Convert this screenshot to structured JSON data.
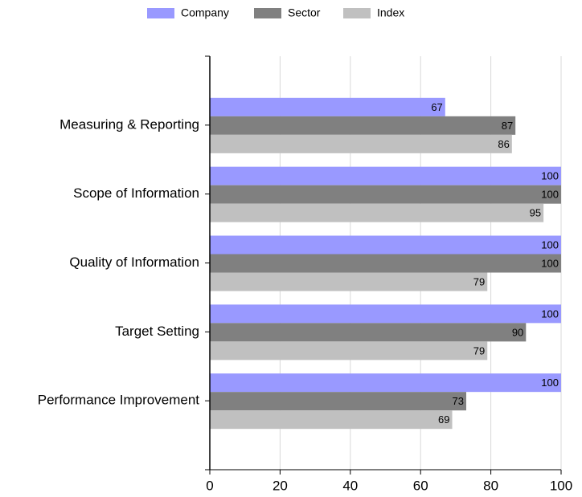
{
  "chart_data": {
    "type": "barh",
    "categories": [
      "Measuring & Reporting",
      "Scope of Information",
      "Quality of Information",
      "Target Setting",
      "Performance Improvement"
    ],
    "series": [
      {
        "name": "Company",
        "color": "#9999ff",
        "values": [
          67,
          100,
          100,
          100,
          100
        ]
      },
      {
        "name": "Sector",
        "color": "#808080",
        "values": [
          87,
          100,
          100,
          90,
          73
        ]
      },
      {
        "name": "Index",
        "color": "#c0c0c0",
        "values": [
          86,
          95,
          79,
          79,
          69
        ]
      }
    ],
    "xlim": [
      0,
      100
    ],
    "xticks": [
      0,
      20,
      40,
      60,
      80,
      100
    ],
    "grid": true,
    "legend": "top"
  }
}
